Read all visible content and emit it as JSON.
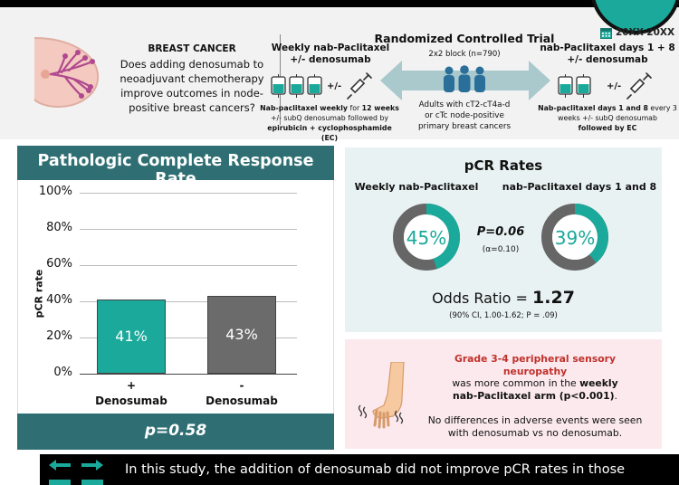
{
  "header": {
    "date_range": "20XX-20XX",
    "question_title": "BREAST CANCER",
    "question_text": "Does adding denosumab to neoadjuvant chemotherapy improve outcomes in node-positive breast cancers?",
    "arm1": {
      "title_line1": "Weekly nab-Paclitaxel",
      "title_line2": "+/- denosumab",
      "plusminus": "+/-",
      "desc_b1": "Nab-paclitaxel weekly",
      "desc_t1": " for ",
      "desc_b2": "12 weeks",
      "desc_line2": "+/- subQ denosumab followed by",
      "desc_line3": "epirubicin + cyclophosphamide (EC)"
    },
    "rct": {
      "title": "Randomized Controlled Trial",
      "block": "2x2 block (n=790)",
      "desc_line1": "Adults with cT2-cT4a-d",
      "desc_line2": "or cTc node-positive",
      "desc_line3": "primary breast cancers"
    },
    "arm2": {
      "title_line1": "nab-Paclitaxel days 1 + 8",
      "title_line2": "+/- denosumab",
      "plusminus": "+/-",
      "desc_b1": "Nab-paclitaxel days 1 and 8",
      "desc_t1": " every 3",
      "desc_line2": "weeks +/- subQ denosumab",
      "desc_line3": "followed by EC"
    }
  },
  "left_panel": {
    "title": "Pathologic Complete Response Rate",
    "footer_p": "p=0.58"
  },
  "chart_data": {
    "type": "bar",
    "ylabel": "pCR rate",
    "ylim": [
      0,
      100
    ],
    "yticks": [
      "0%",
      "20%",
      "40%",
      "60%",
      "80%",
      "100%"
    ],
    "categories": [
      {
        "line1": "+",
        "line2": "Denosumab"
      },
      {
        "line1": "-",
        "line2": "Denosumab"
      }
    ],
    "values": [
      41,
      43
    ],
    "value_labels": [
      "41%",
      "43%"
    ],
    "colors": [
      "#1aa99a",
      "#6b6b6b"
    ]
  },
  "right_top": {
    "title": "pCR Rates",
    "arm1_label": "Weekly nab-Paclitaxel",
    "arm2_label": "nab-Paclitaxel days 1 and 8",
    "donut1": {
      "value": 45,
      "label": "45%"
    },
    "donut2": {
      "value": 39,
      "label": "39%"
    },
    "p_value": "P=0.06",
    "alpha": "(α=0.10)",
    "odds_label": "Odds Ratio = ",
    "odds_value": "1.27",
    "ci": "(90% CI, 1.00-1.62; P = .09)"
  },
  "right_bottom": {
    "ae_red": "Grade 3-4 peripheral sensory neuropathy",
    "ae_mid": "was more common in the ",
    "ae_bold1": "weekly",
    "ae_bold2": "nab-Paclitaxel arm (p<0.001)",
    "ae_end": ".",
    "ae_line2": "No differences in adverse events were seen with denosumab vs no denosumab."
  },
  "conclusion": "In this study, the addition of denosumab did not improve pCR rates in those"
}
